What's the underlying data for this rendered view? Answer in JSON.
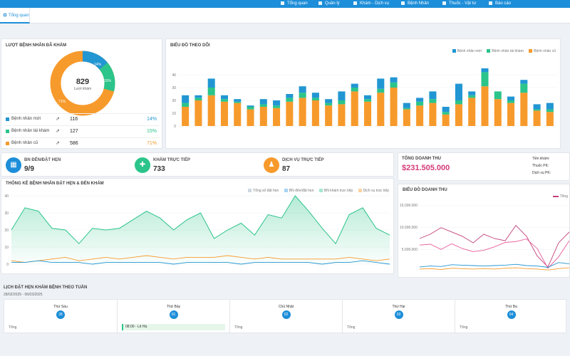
{
  "nav": {
    "items": [
      {
        "label": "Tổng quan",
        "icon": "dashboard-icon"
      },
      {
        "label": "Quản lý",
        "icon": "manage-icon"
      },
      {
        "label": "Khám - Dịch vụ",
        "icon": "exam-icon"
      },
      {
        "label": "Bệnh Nhân",
        "icon": "patient-icon"
      },
      {
        "label": "Thuốc - Vật tư",
        "icon": "medicine-icon"
      },
      {
        "label": "Báo cáo",
        "icon": "report-icon"
      }
    ]
  },
  "tabs": {
    "overview": "Tổng quan"
  },
  "visits": {
    "title": "LƯỢT BỆNH NHÂN ĐÃ KHÁM",
    "total": "829",
    "total_label": "Lượt khám",
    "rows": [
      {
        "label": "Bệnh nhân mới",
        "count": "116",
        "percent": "14%",
        "color": "#2196d3"
      },
      {
        "label": "Bệnh nhân tái khám",
        "count": "127",
        "percent": "15%",
        "color": "#2bc48a"
      },
      {
        "label": "Bệnh nhân cũ",
        "count": "586",
        "percent": "71%",
        "color": "#f79a2c"
      }
    ],
    "donut_labels": [
      "14%",
      "15%",
      "71%"
    ]
  },
  "tracking": {
    "title": "BIỂU ĐỒ THEO DÕI",
    "legend": [
      "Bệnh nhân mới",
      "Bệnh nhân tái khám",
      "Bệnh nhân cũ"
    ]
  },
  "kpis": [
    {
      "label": "BN ĐẾN/ĐẶT HẸN",
      "value": "9/9",
      "color": "#1d8ed9",
      "icon": "calendar-icon"
    },
    {
      "label": "KHÁM TRỰC TIẾP",
      "value": "733",
      "color": "#2bc48a",
      "icon": "stethoscope-icon"
    },
    {
      "label": "DỊCH VỤ TRỰC TIẾP",
      "value": "87",
      "color": "#f79a2c",
      "icon": "service-icon"
    }
  ],
  "revenue": {
    "title": "TỔNG DOANH THU",
    "amount": "$231.505.000",
    "side_labels": [
      "Tiền khám:",
      "Thuốc PK:",
      "Dịch vụ PK:"
    ]
  },
  "appointments_chart": {
    "title": "THỐNG KÊ BỆNH NHÂN ĐẶT HẸN & ĐẾN KHÁM",
    "legend": [
      "Tổng số đặt hẹn",
      "BN đến/đặt hẹn",
      "BN khám trực tiếp",
      "Dịch vụ trực tiếp"
    ]
  },
  "revenue_chart": {
    "title": "BIỂU ĐỒ DOANH THU",
    "legend": [
      "Tổng"
    ],
    "yticks": [
      "15.000.000",
      "10.000.000",
      "5.000.000"
    ]
  },
  "schedule": {
    "title": "LỊCH ĐẶT HẸN KHÁM BỆNH THEO TUẦN",
    "range": "28/02/2025 - 06/03/2025",
    "days": [
      {
        "name": "Thứ Sáu",
        "num": "28",
        "total": "Tổng"
      },
      {
        "name": "Thứ Bảy",
        "num": "01",
        "total": "Tổng"
      },
      {
        "name": "Chủ Nhật",
        "num": "02",
        "total": "Tổng"
      },
      {
        "name": "Thứ Hai",
        "num": "03",
        "total": "Tổng"
      },
      {
        "name": "Thứ Ba",
        "num": "04",
        "total": "Tổng"
      }
    ],
    "appointment": "08:00 - Lê Hà"
  },
  "chart_data": [
    {
      "type": "bar",
      "title": "BIỂU ĐỒ THEO DÕI",
      "ylim": [
        0,
        50
      ],
      "yticks": [
        0,
        10,
        20,
        30,
        40
      ],
      "series": [
        {
          "name": "Bệnh nhân cũ",
          "color": "#f79a2c",
          "values": [
            15,
            20,
            24,
            19,
            18,
            13,
            15,
            14,
            19,
            22,
            20,
            16,
            17,
            27,
            19,
            26,
            30,
            13,
            16,
            18,
            9,
            17,
            22,
            31,
            21,
            18,
            26,
            12,
            11
          ]
        },
        {
          "name": "Bệnh nhân tái khám",
          "color": "#2bc48a",
          "values": [
            3,
            2,
            6,
            2,
            1,
            2,
            2,
            2,
            3,
            4,
            2,
            2,
            3,
            3,
            2,
            3,
            4,
            1,
            3,
            3,
            2,
            3,
            2,
            11,
            6,
            2,
            7,
            1,
            2
          ]
        },
        {
          "name": "Bệnh nhân mới",
          "color": "#2196d3",
          "values": [
            6,
            2,
            7,
            3,
            2,
            1,
            4,
            4,
            3,
            5,
            4,
            3,
            7,
            3,
            3,
            8,
            4,
            4,
            3,
            6,
            4,
            13,
            3,
            3,
            0,
            3,
            3,
            4,
            5
          ]
        }
      ]
    },
    {
      "type": "area",
      "title": "THỐNG KÊ BỆNH NHÂN ĐẶT HẸN & ĐẾN KHÁM",
      "ylim": [
        0,
        40
      ],
      "yticks": [
        0,
        10,
        20,
        30,
        40
      ],
      "series": [
        {
          "name": "BN khám trực tiếp",
          "color": "#2bc48a",
          "values": [
            20,
            33,
            31,
            21,
            20,
            12,
            21,
            20,
            21,
            26,
            31,
            27,
            20,
            26,
            30,
            15,
            20,
            24,
            17,
            29,
            27,
            40,
            31,
            21,
            12,
            29,
            33,
            21,
            17
          ]
        },
        {
          "name": "Dịch vụ trực tiếp",
          "color": "#f79a2c",
          "values": [
            2,
            1,
            2,
            3,
            4,
            2,
            3,
            4,
            3,
            4,
            5,
            4,
            3,
            4,
            4,
            4,
            5,
            4,
            3,
            4,
            3,
            3,
            3,
            3,
            3,
            4,
            3,
            2,
            3
          ]
        },
        {
          "name": "BN đến/đặt hẹn",
          "color": "#2196d3",
          "values": [
            1,
            1,
            2,
            1,
            1,
            1,
            0,
            1,
            1,
            1,
            1,
            1,
            0,
            1,
            1,
            1,
            1,
            0,
            1,
            1,
            1,
            1,
            1,
            0,
            1,
            1,
            2,
            1,
            0
          ]
        }
      ]
    },
    {
      "type": "line",
      "title": "BIỂU ĐỒ DOANH THU",
      "ylim": [
        0,
        15000000
      ],
      "series": [
        {
          "color": "#c2407a",
          "values": [
            7500000,
            8500000,
            10000000,
            9000000,
            8000000,
            6500000,
            8500000,
            7500000,
            7000000,
            10500000,
            8000000,
            3500000,
            1000000,
            6500000,
            9000000
          ]
        },
        {
          "color": "#e85a9a",
          "values": [
            6000000,
            6200000,
            5000000,
            6300000,
            5200000,
            4500000,
            4800000,
            5600000,
            6600000,
            6800000,
            7400000,
            5200000,
            700000,
            3300000,
            7000000
          ]
        },
        {
          "color": "#2196d3",
          "values": [
            1000000,
            1200000,
            1100000,
            1500000,
            1400000,
            1300000,
            1200000,
            1300000,
            1400000,
            1600000,
            1300000,
            1200000,
            900000,
            2000000,
            1700000
          ]
        },
        {
          "color": "#f79a2c",
          "values": [
            500000,
            600000,
            400000,
            700000,
            600000,
            500000,
            600000,
            500000,
            700000,
            800000,
            600000,
            500000,
            300000,
            600000,
            800000
          ]
        }
      ]
    }
  ]
}
